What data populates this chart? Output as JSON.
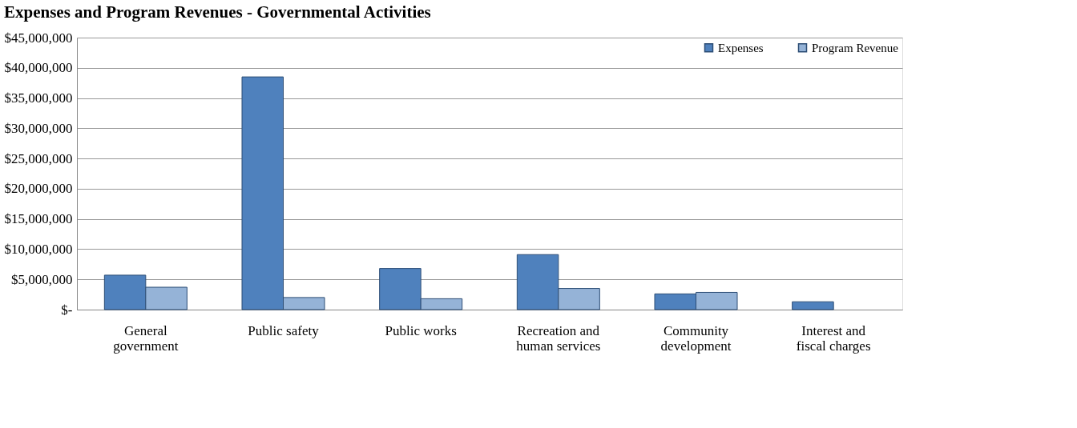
{
  "chart_data": {
    "type": "bar",
    "title": "Expenses and Program Revenues - Governmental Activities",
    "categories": [
      "General\ngovernment",
      "Public safety",
      "Public works",
      "Recreation and\nhuman services",
      "Community\ndevelopment",
      "Interest and\nfiscal charges"
    ],
    "series": [
      {
        "name": "Expenses",
        "color": "#4f81bd",
        "values": [
          5700000,
          38500000,
          6800000,
          9100000,
          2600000,
          1300000
        ]
      },
      {
        "name": "Program Revenue",
        "color": "#95b3d7",
        "values": [
          3700000,
          2000000,
          1800000,
          3500000,
          2850000,
          null
        ]
      }
    ],
    "ylim": [
      0,
      45000000
    ],
    "yticks": [
      {
        "value": 0,
        "label": "$-"
      },
      {
        "value": 5000000,
        "label": "$5,000,000"
      },
      {
        "value": 10000000,
        "label": "$10,000,000"
      },
      {
        "value": 15000000,
        "label": "$15,000,000"
      },
      {
        "value": 20000000,
        "label": "$20,000,000"
      },
      {
        "value": 25000000,
        "label": "$25,000,000"
      },
      {
        "value": 30000000,
        "label": "$30,000,000"
      },
      {
        "value": 35000000,
        "label": "$35,000,000"
      },
      {
        "value": 40000000,
        "label": "$40,000,000"
      },
      {
        "value": 45000000,
        "label": "$45,000,000"
      }
    ],
    "grid": "y",
    "legend": "top right"
  }
}
